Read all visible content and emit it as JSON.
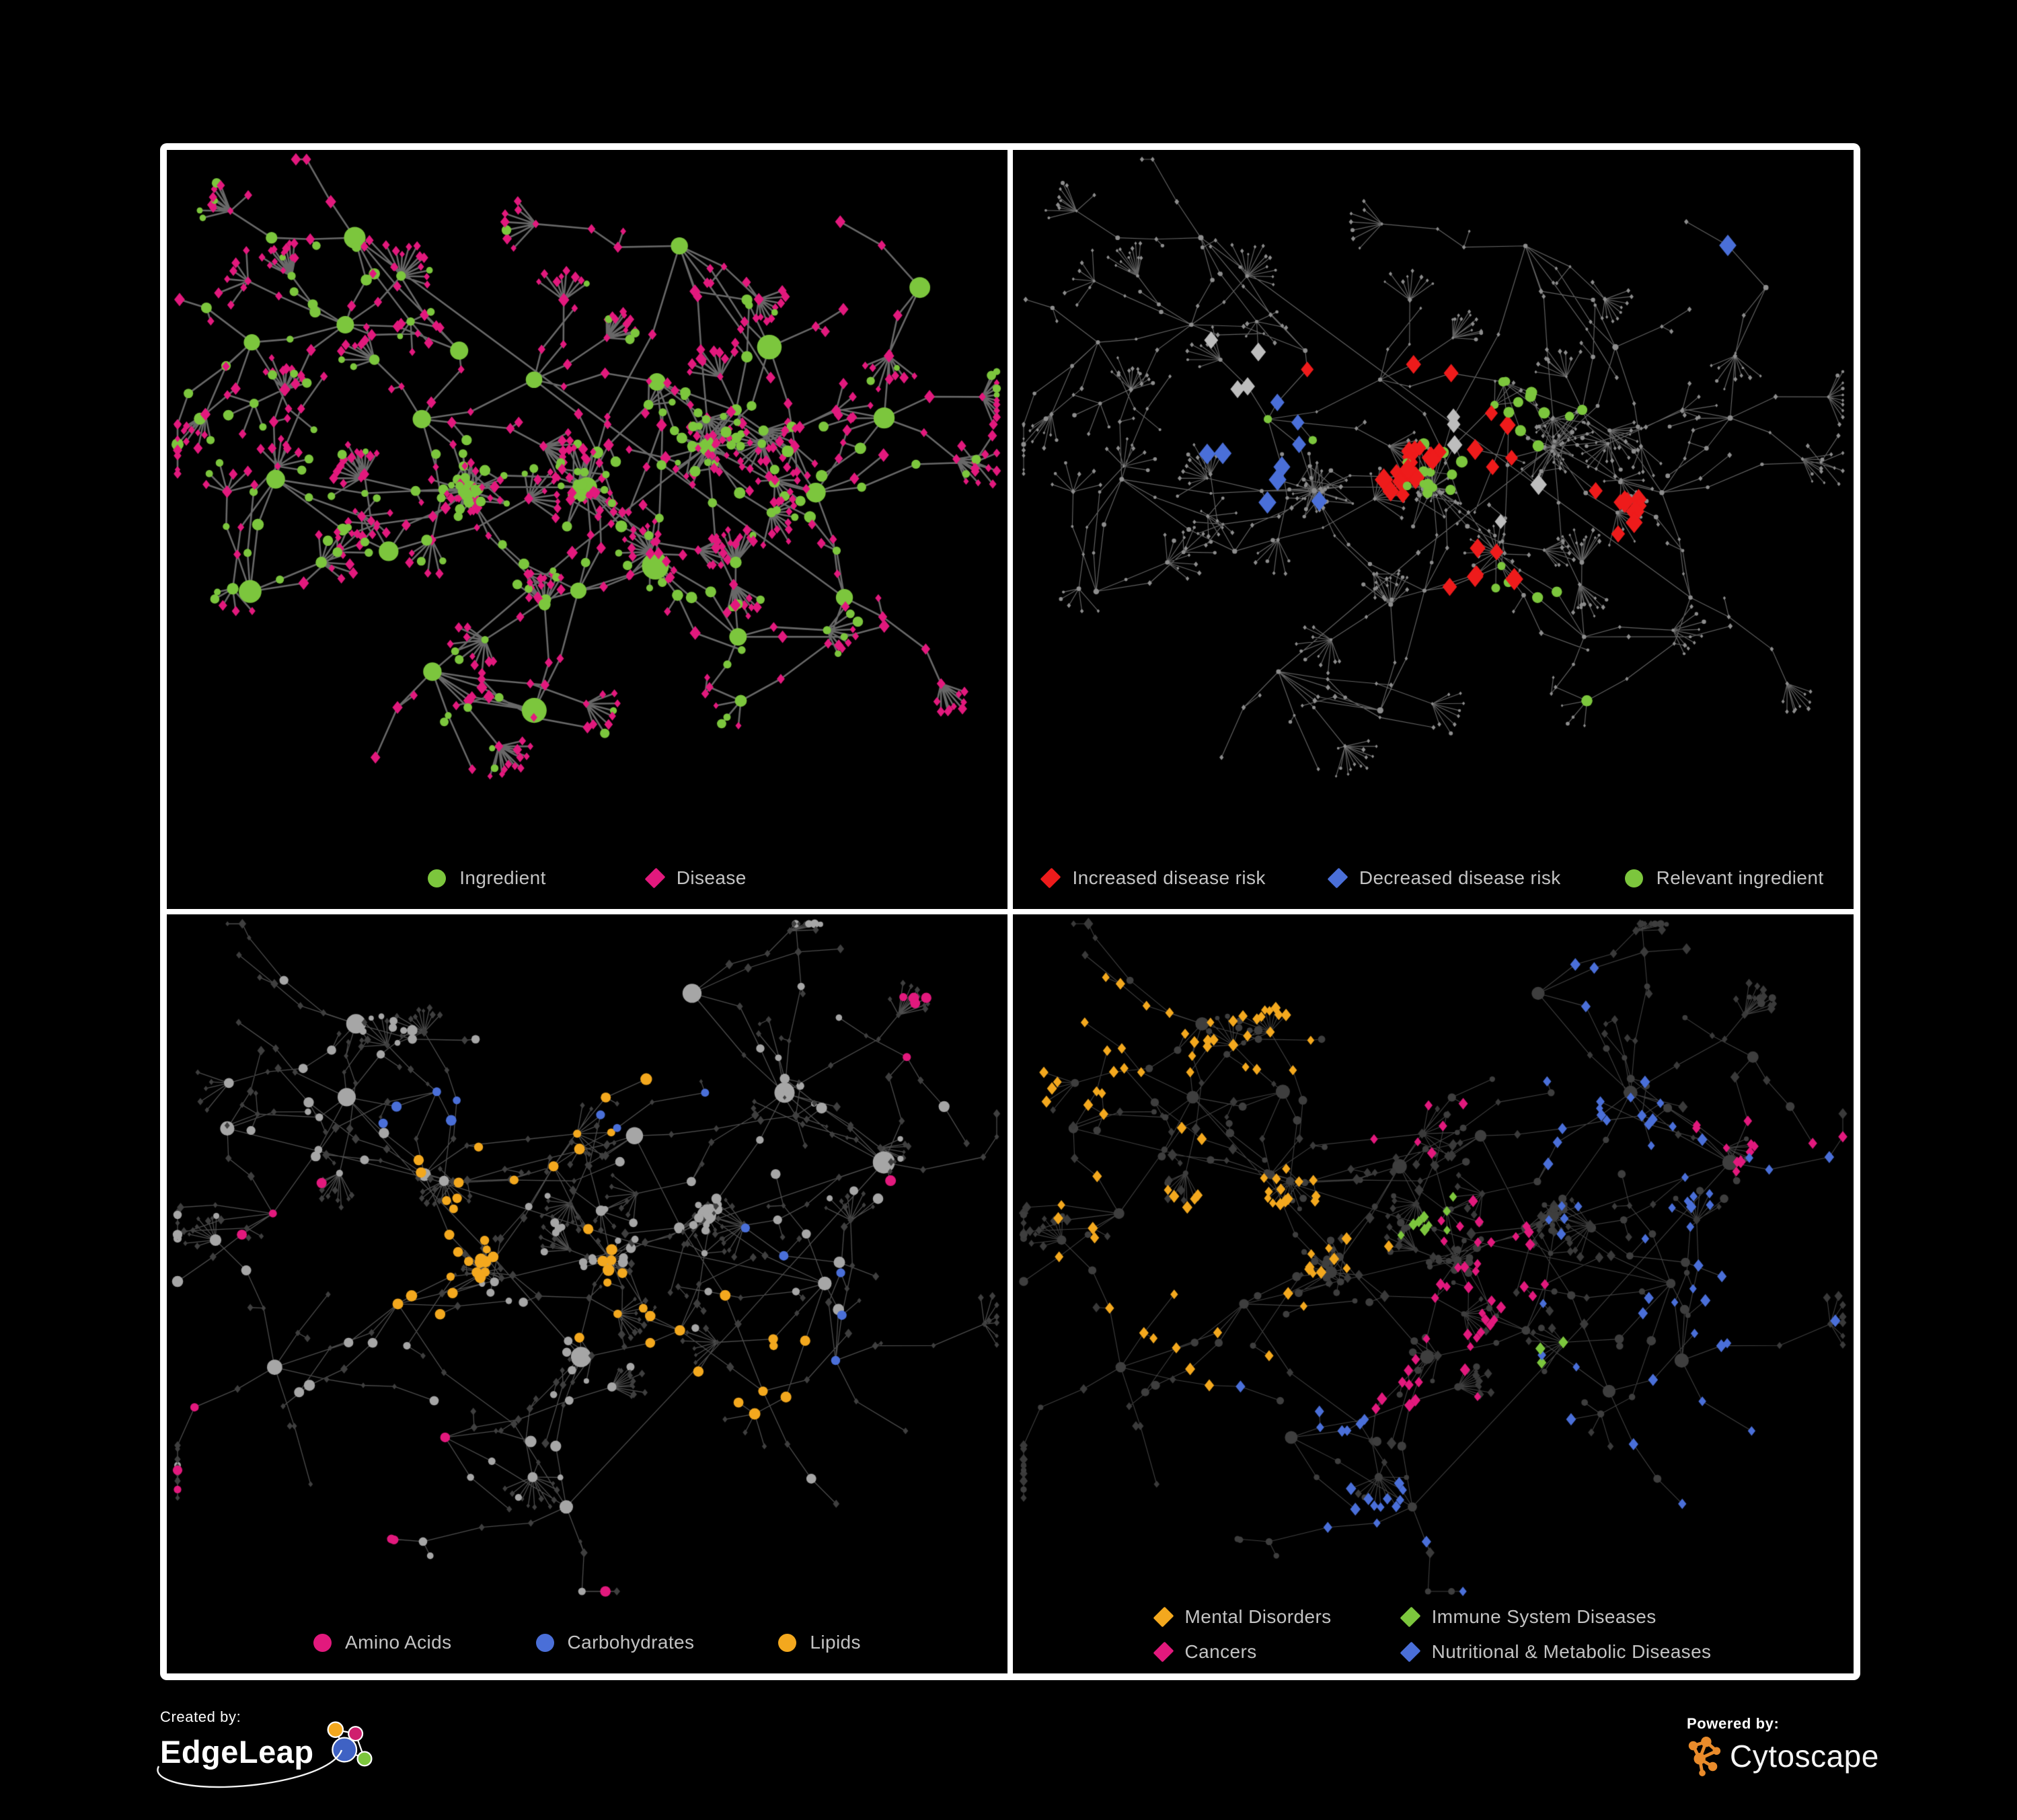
{
  "figure": {
    "background": "#000000",
    "frame_color": "#ffffff",
    "legend_text_color": "#c3c3c3"
  },
  "panels": [
    {
      "id": "ingredient-disease",
      "legend": [
        {
          "label": "Ingredient",
          "shape": "circle",
          "color": "#7cc63d"
        },
        {
          "label": "Disease",
          "shape": "diamond",
          "color": "#e2197d"
        }
      ]
    },
    {
      "id": "disease-risk",
      "legend": [
        {
          "label": "Increased disease risk",
          "shape": "diamond",
          "color": "#ee1b1b"
        },
        {
          "label": "Decreased disease risk",
          "shape": "diamond",
          "color": "#4a6fd8"
        },
        {
          "label": "Relevant ingredient",
          "shape": "circle",
          "color": "#7cc63d"
        }
      ]
    },
    {
      "id": "nutrient-classes",
      "legend": [
        {
          "label": "Amino Acids",
          "shape": "circle",
          "color": "#e2197d"
        },
        {
          "label": "Carbohydrates",
          "shape": "circle",
          "color": "#4a6fd8"
        },
        {
          "label": "Lipids",
          "shape": "circle",
          "color": "#f3a81e"
        }
      ]
    },
    {
      "id": "disease-classes",
      "legend": [
        {
          "label": "Mental Disorders",
          "shape": "diamond",
          "color": "#f3a81e"
        },
        {
          "label": "Immune System Diseases",
          "shape": "diamond",
          "color": "#7cc63d"
        },
        {
          "label": "Cancers",
          "shape": "diamond",
          "color": "#e2197d"
        },
        {
          "label": "Nutritional & Metabolic Diseases",
          "shape": "diamond",
          "color": "#4a6fd8"
        }
      ]
    }
  ],
  "footer": {
    "created_by_label": "Created by:",
    "created_by_name": "EdgeLeap",
    "powered_by_label": "Powered by:",
    "powered_by_name": "Cytoscape",
    "cytoscape_orange": "#e98b2b",
    "edgeleap_node_colors": [
      "#f3a81e",
      "#cf1f6e",
      "#3f62c4",
      "#7cc63d"
    ]
  },
  "chart_data": [
    {
      "type": "network",
      "panel_id": "ingredient-disease",
      "description": "Ingredient-disease association network; green circles are ingredients, magenta diamonds are diseases",
      "approx_nodes": 700,
      "approx_edges": 740,
      "render": {
        "seed": 13,
        "branch_len_add": 0,
        "fan_prob": 0.55,
        "edge": {
          "color": "#6e6e6e",
          "width": 2.6,
          "alpha": 0.95
        },
        "base": {
          "circle": {
            "color": "#7cc63d",
            "size": 6.8
          },
          "diamond": {
            "color": "#e2197d",
            "size": 6.2
          }
        },
        "hub_scale": 2.2,
        "leaf_scale": 0.85,
        "groups": []
      }
    },
    {
      "type": "network",
      "panel_id": "disease-risk",
      "description": "Same network dimmed; highlighted diamonds show disease-risk direction, green circles relevant ingredients",
      "approx_nodes": 700,
      "approx_edges": 740,
      "render": {
        "seed": 13,
        "branch_len_add": 0,
        "fan_prob": 0.55,
        "edge": {
          "color": "#7b7b7b",
          "width": 1.2,
          "alpha": 0.8
        },
        "base": {
          "circle": {
            "color": "#8d8d8d",
            "size": 2.7
          },
          "diamond": {
            "color": "#8d8d8d",
            "size": 2.7
          }
        },
        "hub_scale": 1.4,
        "leaf_scale": 0.9,
        "groups": [
          {
            "name": "increased-risk",
            "shape": "diamond",
            "color": "#ee1b1b",
            "size": 11,
            "count": 40,
            "centers": [
              [
                0.5,
                0.33
              ],
              [
                0.58,
                0.43
              ],
              [
                0.47,
                0.47
              ],
              [
                0.72,
                0.52
              ],
              [
                0.55,
                0.62
              ],
              [
                0.38,
                0.3
              ],
              [
                0.64,
                0.88
              ]
            ]
          },
          {
            "name": "decreased-risk",
            "shape": "diamond",
            "color": "#4a6fd8",
            "size": 11,
            "count": 10,
            "centers": [
              [
                0.3,
                0.4
              ],
              [
                0.29,
                0.47
              ],
              [
                0.92,
                0.2
              ]
            ]
          },
          {
            "name": "no-change",
            "shape": "diamond",
            "color": "#bdbdbd",
            "size": 10,
            "count": 9,
            "centers": [
              [
                0.27,
                0.31
              ],
              [
                0.6,
                0.52
              ],
              [
                0.52,
                0.4
              ]
            ]
          },
          {
            "name": "relevant-ingredient",
            "shape": "circle",
            "color": "#7cc63d",
            "size": 7,
            "count": 34,
            "centers": [
              [
                0.42,
                0.38
              ],
              [
                0.52,
                0.46
              ],
              [
                0.3,
                0.36
              ],
              [
                0.6,
                0.35
              ],
              [
                0.62,
                0.6
              ],
              [
                0.75,
                0.8
              ]
            ]
          }
        ]
      }
    },
    {
      "type": "network",
      "panel_id": "nutrient-classes",
      "description": "Ingredient circles colored by nutrient class (Amino Acids, Carbohydrates, Lipids); disease diamonds dimmed dark gray",
      "approx_nodes": 720,
      "approx_edges": 760,
      "render": {
        "seed": 47,
        "branch_len_add": 1,
        "fan_prob": 0.5,
        "edge": {
          "color": "#9a9a9a",
          "width": 1.3,
          "alpha": 0.5
        },
        "base": {
          "circle": {
            "color": "#a6a6a6",
            "size": 6.4
          },
          "diamond": {
            "color": "#3f3f3f",
            "size": 4.4
          }
        },
        "hub_scale": 1.9,
        "leaf_scale": 0.8,
        "groups": [
          {
            "name": "lipids",
            "shape": "circle",
            "color": "#f3a81e",
            "size": 7,
            "count": 55,
            "centers": [
              [
                0.47,
                0.25
              ],
              [
                0.35,
                0.47
              ],
              [
                0.3,
                0.52
              ],
              [
                0.55,
                0.58
              ],
              [
                0.44,
                0.33
              ],
              [
                0.7,
                0.65
              ]
            ]
          },
          {
            "name": "carbohydrates",
            "shape": "circle",
            "color": "#4a6fd8",
            "size": 6.5,
            "count": 13,
            "centers": [
              [
                0.48,
                0.24
              ],
              [
                0.4,
                0.28
              ],
              [
                0.72,
                0.63
              ]
            ]
          },
          {
            "name": "amino-acids",
            "shape": "circle",
            "color": "#e2197d",
            "size": 6.5,
            "count": 16,
            "centers": [
              [
                0.14,
                0.4
              ],
              [
                0.7,
                0.72
              ],
              [
                0.88,
                0.18
              ],
              [
                0.25,
                0.85
              ],
              [
                0.55,
                0.92
              ],
              [
                0.1,
                0.78
              ],
              [
                0.95,
                0.45
              ]
            ]
          }
        ]
      }
    },
    {
      "type": "network",
      "panel_id": "disease-classes",
      "description": "Disease diamonds colored by disease class; everything else dimmed dark gray",
      "approx_nodes": 720,
      "approx_edges": 760,
      "render": {
        "seed": 47,
        "branch_len_add": 1,
        "fan_prob": 0.5,
        "edge": {
          "color": "#8f8f8f",
          "width": 1.1,
          "alpha": 0.45
        },
        "base": {
          "circle": {
            "color": "#3e3e3e",
            "size": 5.2
          },
          "diamond": {
            "color": "#3a3a3a",
            "size": 5.4
          }
        },
        "hub_scale": 1.6,
        "leaf_scale": 0.85,
        "groups": [
          {
            "name": "mental-disorders",
            "shape": "diamond",
            "color": "#f3a81e",
            "size": 6.2,
            "count": 90,
            "centers": [
              [
                0.17,
                0.52
              ],
              [
                0.23,
                0.6
              ],
              [
                0.28,
                0.45
              ],
              [
                0.3,
                0.15
              ],
              [
                0.13,
                0.2
              ]
            ]
          },
          {
            "name": "cancers",
            "shape": "diamond",
            "color": "#e2197d",
            "size": 6.2,
            "count": 62,
            "centers": [
              [
                0.52,
                0.6
              ],
              [
                0.47,
                0.68
              ],
              [
                0.58,
                0.5
              ],
              [
                0.45,
                0.3
              ],
              [
                0.9,
                0.32
              ]
            ]
          },
          {
            "name": "nutritional-metabolic",
            "shape": "diamond",
            "color": "#4a6fd8",
            "size": 6.2,
            "count": 78,
            "centers": [
              [
                0.78,
                0.62
              ],
              [
                0.84,
                0.55
              ],
              [
                0.7,
                0.3
              ],
              [
                0.93,
                0.42
              ],
              [
                0.4,
                0.92
              ],
              [
                0.6,
                0.06
              ],
              [
                0.88,
                0.8
              ],
              [
                0.35,
                0.78
              ]
            ]
          },
          {
            "name": "immune-system",
            "shape": "diamond",
            "color": "#7cc63d",
            "size": 6.2,
            "count": 12,
            "centers": [
              [
                0.5,
                0.45
              ],
              [
                0.65,
                0.65
              ],
              [
                0.3,
                0.65
              ],
              [
                0.55,
                0.25
              ]
            ]
          }
        ]
      }
    }
  ]
}
